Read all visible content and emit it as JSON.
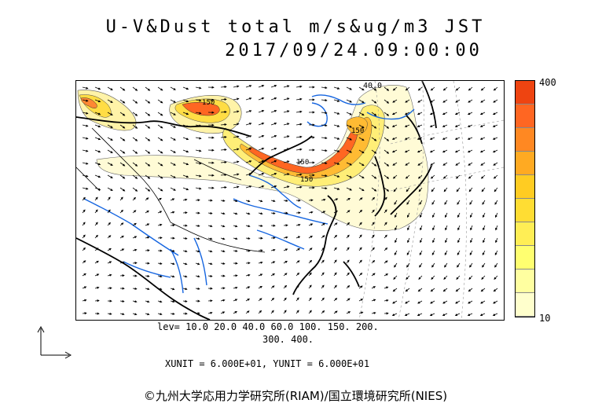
{
  "title": {
    "line1": "U-V&Dust total m/s&ug/m3 JST",
    "line2": "2017/09/24.09:00:00"
  },
  "colorbar": {
    "max_label": "400",
    "min_label": "10",
    "colors": [
      "#ffffcc",
      "#ffffa0",
      "#ffff70",
      "#ffee55",
      "#ffdd33",
      "#ffcc22",
      "#ffaa22",
      "#ff8822",
      "#ff6622",
      "#ee4411"
    ]
  },
  "contour_labels": {
    "top": "40.0",
    "label_150_a": "150",
    "label_150_b": "150",
    "label_150_c": "150",
    "label_150_d": "150"
  },
  "levels": {
    "line1": "lev= 10.0 20.0 40.0 60.0 100. 150. 200.",
    "line2": "300. 400."
  },
  "units": "XUNIT = 6.000E+01, YUNIT = 6.000E+01",
  "credit": "©九州大学応用力学研究所(RIAM)/国立環境研究所(NIES)"
}
